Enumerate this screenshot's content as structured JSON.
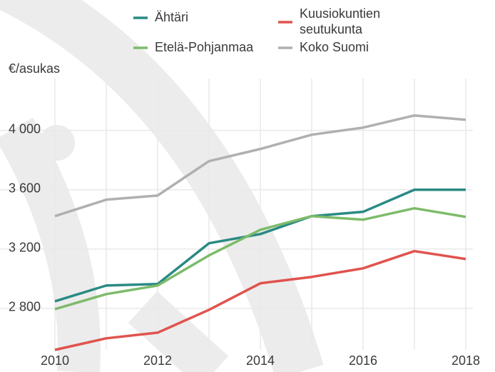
{
  "chart_data": {
    "type": "line",
    "y_unit_label": "€/asukas",
    "x": [
      2010,
      2011,
      2012,
      2013,
      2014,
      2015,
      2016,
      2017,
      2018
    ],
    "xlim": [
      2010,
      2018
    ],
    "xticks": [
      2010,
      2012,
      2014,
      2016,
      2018
    ],
    "ylim": [
      2520,
      4350
    ],
    "yticks": [
      {
        "value": 2800,
        "label": "2 800"
      },
      {
        "value": 3200,
        "label": "3 200"
      },
      {
        "value": 3600,
        "label": "3 600"
      },
      {
        "value": 4000,
        "label": "4 000"
      }
    ],
    "grid": true,
    "series": [
      {
        "name": "Ähtäri",
        "color": "#2a8a84",
        "values": [
          2848,
          2954,
          2964,
          3239,
          3301,
          3422,
          3451,
          3600,
          3600
        ]
      },
      {
        "name": "Kuusiokuntien seutukunta",
        "color": "#e0534d",
        "values": [
          2520,
          2598,
          2636,
          2790,
          2969,
          3012,
          3070,
          3186,
          3133
        ]
      },
      {
        "name": "Etelä-Pohjanmaa",
        "color": "#7dbb6a",
        "values": [
          2795,
          2896,
          2954,
          3157,
          3330,
          3422,
          3398,
          3475,
          3417
        ]
      },
      {
        "name": "Koko Suomi",
        "color": "#b0b0b0",
        "values": [
          3422,
          3533,
          3561,
          3793,
          3875,
          3971,
          4019,
          4101,
          4072
        ]
      }
    ]
  }
}
